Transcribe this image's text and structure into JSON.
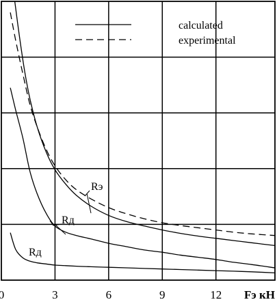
{
  "chart_data": {
    "type": "line",
    "title": "",
    "xlabel": "Fэ кН",
    "ylabel": "",
    "xlim": [
      0,
      15.3
    ],
    "ylim": [
      0,
      5
    ],
    "x_ticks": [
      0,
      3,
      6,
      9,
      12
    ],
    "x_tick_labels": [
      "0",
      "3",
      "6",
      "9",
      "12"
    ],
    "y_ticks": [
      0,
      1,
      2,
      3,
      4,
      5
    ],
    "grid": true,
    "legend": {
      "position": "top-right",
      "entries": [
        {
          "label": "calculated",
          "style": "solid"
        },
        {
          "label": "experimental",
          "style": "dashed"
        }
      ]
    },
    "series": [
      {
        "style": "solid",
        "x": [
          0.75,
          1.0,
          1.3,
          1.6,
          2.0,
          2.5,
          3.0,
          3.6,
          4.2,
          5.0,
          6.0,
          7.0,
          8.0,
          9.0,
          10.0,
          11.0,
          12.0,
          13.0,
          14.0,
          15.3
        ],
        "y": [
          5.0,
          4.4,
          3.75,
          3.25,
          2.75,
          2.3,
          1.98,
          1.72,
          1.52,
          1.33,
          1.16,
          1.05,
          0.97,
          0.9,
          0.84,
          0.79,
          0.75,
          0.71,
          0.67,
          0.62
        ]
      },
      {
        "style": "dashed",
        "x": [
          0.5,
          0.8,
          1.2,
          1.6,
          2.0,
          2.5,
          3.0,
          3.6,
          4.2,
          5.0,
          6.0,
          7.0,
          8.0,
          9.0,
          10.0,
          11.0,
          12.0,
          13.0,
          14.0,
          15.3
        ],
        "y": [
          4.8,
          4.3,
          3.7,
          3.15,
          2.75,
          2.35,
          2.05,
          1.8,
          1.62,
          1.46,
          1.3,
          1.19,
          1.1,
          1.03,
          0.98,
          0.94,
          0.9,
          0.86,
          0.83,
          0.8
        ]
      },
      {
        "style": "solid",
        "x": [
          0.5,
          0.8,
          1.2,
          1.6,
          2.0,
          2.5,
          3.0,
          3.6,
          4.2,
          5.0,
          6.0,
          7.0,
          8.0,
          9.0,
          10.0,
          11.0,
          12.0,
          13.0,
          14.0,
          15.3
        ],
        "y": [
          3.45,
          3.05,
          2.55,
          1.95,
          1.55,
          1.2,
          0.97,
          0.86,
          0.8,
          0.74,
          0.66,
          0.6,
          0.54,
          0.5,
          0.45,
          0.41,
          0.37,
          0.32,
          0.28,
          0.22
        ]
      },
      {
        "style": "solid",
        "x": [
          0.5,
          0.8,
          1.2,
          1.6,
          2.0,
          2.5,
          3.0,
          3.6,
          4.2,
          5.0,
          6.0,
          7.0,
          8.0,
          9.0,
          10.0,
          11.0,
          12.0,
          13.0,
          14.0,
          15.3
        ],
        "y": [
          0.85,
          0.55,
          0.4,
          0.34,
          0.31,
          0.29,
          0.27,
          0.26,
          0.25,
          0.24,
          0.23,
          0.22,
          0.21,
          0.2,
          0.19,
          0.18,
          0.17,
          0.16,
          0.15,
          0.13
        ]
      }
    ],
    "annotations": [
      {
        "text": "Rэ",
        "x": 4.85,
        "y": 2.2
      },
      {
        "text": "Rд",
        "x": 3.15,
        "y": 1.0
      },
      {
        "text": "Rд",
        "x": 1.15,
        "y": 0.45
      }
    ]
  }
}
